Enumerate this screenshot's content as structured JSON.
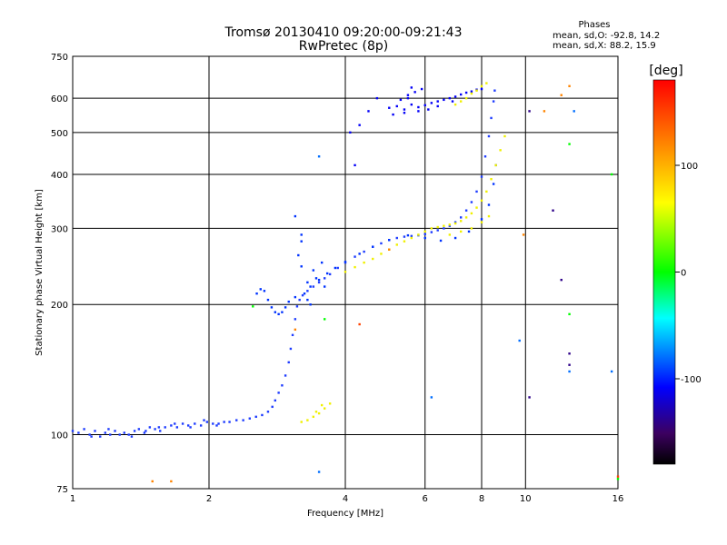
{
  "chart_data": {
    "type": "scatter",
    "title": "Tromsø 20130410 09:20:00-09:21:43",
    "subtitle": "RwPretec (8p)",
    "xlabel": "Frequency [MHz]",
    "ylabel": "Stationary phase Virtual Height [km]",
    "xscale": "log",
    "yscale": "log",
    "xlim": [
      1,
      16
    ],
    "ylim": [
      75,
      750
    ],
    "x_ticks": [
      1,
      2,
      4,
      6,
      8,
      10,
      16
    ],
    "y_ticks": [
      75,
      100,
      200,
      300,
      400,
      500,
      600,
      750
    ],
    "grid": true,
    "phases": {
      "title": "Phases",
      "o_line": "mean, sd,O:  -92.8, 14.2",
      "x_line": "mean, sd,X:   88.2, 15.9"
    },
    "colorbar": {
      "label": "[deg]",
      "ticks": [
        100,
        0,
        -100
      ],
      "range": [
        -180,
        180
      ]
    },
    "o_trace_color": "#1e3cff",
    "x_trace_color": "#f0f000",
    "series": [
      {
        "phase": -100,
        "points": [
          [
            1.0,
            102
          ],
          [
            1.03,
            101
          ],
          [
            1.06,
            103
          ],
          [
            1.09,
            100
          ],
          [
            1.12,
            102
          ],
          [
            1.15,
            99
          ],
          [
            1.18,
            101
          ],
          [
            1.21,
            100
          ],
          [
            1.24,
            102
          ],
          [
            1.27,
            100
          ],
          [
            1.3,
            101
          ],
          [
            1.33,
            100
          ],
          [
            1.37,
            102
          ],
          [
            1.4,
            103
          ],
          [
            1.44,
            101
          ],
          [
            1.48,
            104
          ],
          [
            1.52,
            103
          ],
          [
            1.56,
            102
          ],
          [
            1.6,
            104
          ],
          [
            1.65,
            105
          ],
          [
            1.7,
            104
          ],
          [
            1.75,
            106
          ],
          [
            1.8,
            105
          ],
          [
            1.86,
            106
          ],
          [
            1.92,
            105
          ],
          [
            1.98,
            107
          ],
          [
            2.04,
            106
          ],
          [
            2.1,
            106
          ],
          [
            2.16,
            107
          ],
          [
            2.22,
            107
          ],
          [
            2.3,
            108
          ],
          [
            2.38,
            108
          ],
          [
            2.46,
            109
          ],
          [
            2.54,
            110
          ],
          [
            2.62,
            111
          ],
          [
            2.7,
            113
          ],
          [
            2.76,
            116
          ],
          [
            2.8,
            120
          ],
          [
            2.85,
            125
          ],
          [
            2.9,
            130
          ],
          [
            2.95,
            137
          ],
          [
            3.0,
            147
          ],
          [
            3.03,
            158
          ],
          [
            3.06,
            170
          ],
          [
            3.1,
            185
          ],
          [
            3.13,
            198
          ],
          [
            3.17,
            205
          ],
          [
            3.22,
            210
          ],
          [
            3.3,
            215
          ],
          [
            3.4,
            220
          ],
          [
            3.5,
            225
          ],
          [
            3.6,
            230
          ],
          [
            3.7,
            235
          ],
          [
            3.85,
            243
          ],
          [
            4.0,
            250
          ],
          [
            4.2,
            258
          ],
          [
            4.4,
            265
          ],
          [
            4.6,
            272
          ],
          [
            4.8,
            277
          ],
          [
            5.0,
            282
          ],
          [
            5.2,
            285
          ],
          [
            5.4,
            287
          ],
          [
            5.6,
            288
          ],
          [
            5.8,
            289
          ],
          [
            6.0,
            291
          ],
          [
            6.2,
            294
          ],
          [
            6.4,
            297
          ],
          [
            6.6,
            300
          ],
          [
            6.8,
            304
          ],
          [
            7.0,
            310
          ],
          [
            7.2,
            318
          ],
          [
            7.4,
            330
          ],
          [
            7.6,
            345
          ],
          [
            7.8,
            365
          ],
          [
            8.0,
            395
          ],
          [
            8.15,
            440
          ],
          [
            8.3,
            490
          ],
          [
            8.4,
            540
          ],
          [
            8.5,
            590
          ],
          [
            8.55,
            625
          ],
          [
            1.1,
            99
          ],
          [
            1.2,
            103
          ],
          [
            1.35,
            99
          ],
          [
            1.45,
            102
          ],
          [
            1.55,
            104
          ],
          [
            1.68,
            106
          ],
          [
            1.82,
            104
          ],
          [
            1.95,
            108
          ],
          [
            2.08,
            105
          ]
        ]
      },
      {
        "phase": -95,
        "points": [
          [
            2.55,
            212
          ],
          [
            2.6,
            217
          ],
          [
            2.65,
            215
          ],
          [
            2.7,
            205
          ],
          [
            2.75,
            197
          ],
          [
            2.8,
            192
          ],
          [
            2.85,
            190
          ],
          [
            2.9,
            192
          ],
          [
            2.95,
            197
          ],
          [
            3.0,
            203
          ],
          [
            3.1,
            208
          ],
          [
            3.25,
            212
          ],
          [
            3.35,
            220
          ],
          [
            3.5,
            228
          ],
          [
            3.65,
            236
          ],
          [
            3.8,
            243
          ],
          [
            4.0,
            251
          ],
          [
            4.3,
            262
          ],
          [
            4.6,
            272
          ],
          [
            5.0,
            282
          ],
          [
            5.5,
            289
          ],
          [
            6.0,
            285
          ],
          [
            6.5,
            281
          ],
          [
            7.0,
            285
          ],
          [
            7.5,
            295
          ],
          [
            8.0,
            315
          ],
          [
            8.3,
            340
          ],
          [
            8.5,
            380
          ],
          [
            8.6,
            420
          ],
          [
            3.15,
            260
          ],
          [
            3.2,
            245
          ],
          [
            3.3,
            225
          ],
          [
            3.4,
            240
          ],
          [
            3.45,
            230
          ],
          [
            3.55,
            250
          ],
          [
            3.6,
            220
          ],
          [
            3.3,
            205
          ],
          [
            3.35,
            200
          ],
          [
            3.2,
            290
          ],
          [
            3.1,
            320
          ],
          [
            3.2,
            280
          ]
        ]
      },
      {
        "phase": -110,
        "points": [
          [
            5.0,
            570
          ],
          [
            5.2,
            575
          ],
          [
            5.4,
            565
          ],
          [
            5.6,
            580
          ],
          [
            5.8,
            572
          ],
          [
            6.0,
            578
          ],
          [
            6.2,
            585
          ],
          [
            6.4,
            590
          ],
          [
            6.6,
            595
          ],
          [
            6.8,
            600
          ],
          [
            7.0,
            605
          ],
          [
            7.2,
            612
          ],
          [
            7.4,
            618
          ],
          [
            7.6,
            622
          ],
          [
            7.8,
            628
          ],
          [
            8.0,
            630
          ],
          [
            5.3,
            595
          ],
          [
            5.5,
            610
          ],
          [
            5.7,
            620
          ],
          [
            5.9,
            630
          ],
          [
            4.7,
            600
          ],
          [
            4.5,
            560
          ],
          [
            4.3,
            520
          ],
          [
            4.1,
            500
          ],
          [
            5.1,
            550
          ],
          [
            5.4,
            555
          ],
          [
            5.8,
            560
          ],
          [
            6.1,
            565
          ],
          [
            6.4,
            575
          ],
          [
            6.9,
            590
          ],
          [
            5.5,
            600
          ],
          [
            5.6,
            635
          ],
          [
            4.2,
            420
          ]
        ]
      },
      {
        "phase": 95,
        "points": [
          [
            4.0,
            238
          ],
          [
            4.2,
            244
          ],
          [
            4.4,
            250
          ],
          [
            4.6,
            255
          ],
          [
            4.8,
            262
          ],
          [
            5.0,
            268
          ],
          [
            5.2,
            275
          ],
          [
            5.4,
            280
          ],
          [
            5.6,
            285
          ],
          [
            5.8,
            290
          ],
          [
            6.0,
            295
          ],
          [
            6.2,
            300
          ],
          [
            6.4,
            302
          ],
          [
            6.6,
            304
          ],
          [
            6.8,
            306
          ],
          [
            7.0,
            308
          ],
          [
            7.2,
            312
          ],
          [
            7.4,
            318
          ],
          [
            7.6,
            325
          ],
          [
            7.8,
            335
          ],
          [
            8.0,
            348
          ],
          [
            8.2,
            365
          ],
          [
            8.4,
            390
          ],
          [
            8.6,
            420
          ],
          [
            8.8,
            455
          ],
          [
            9.0,
            490
          ],
          [
            6.8,
            290
          ],
          [
            7.2,
            295
          ],
          [
            7.6,
            300
          ],
          [
            8.0,
            310
          ],
          [
            8.3,
            320
          ],
          [
            3.3,
            108
          ],
          [
            3.4,
            110
          ],
          [
            3.5,
            112
          ],
          [
            3.6,
            115
          ],
          [
            3.7,
            118
          ],
          [
            3.2,
            107
          ],
          [
            3.45,
            113
          ],
          [
            3.55,
            117
          ],
          [
            7.0,
            580
          ],
          [
            7.2,
            590
          ],
          [
            7.4,
            600
          ],
          [
            7.6,
            615
          ],
          [
            7.8,
            625
          ],
          [
            8.0,
            640
          ],
          [
            8.2,
            650
          ]
        ]
      },
      {
        "phase": 0,
        "points": [
          [
            2.5,
            198
          ],
          [
            3.6,
            185
          ],
          [
            12.5,
            190
          ],
          [
            12.5,
            470
          ],
          [
            15.5,
            400
          ],
          [
            16.0,
            79
          ]
        ]
      },
      {
        "phase": -140,
        "points": [
          [
            10.2,
            122
          ],
          [
            11.5,
            330
          ],
          [
            12.0,
            228
          ],
          [
            12.5,
            154
          ],
          [
            12.5,
            145
          ],
          [
            10.2,
            560
          ]
        ]
      },
      {
        "phase": 150,
        "points": [
          [
            4.3,
            180
          ],
          [
            16.0,
            80
          ]
        ]
      },
      {
        "phase": 120,
        "points": [
          [
            1.5,
            78
          ],
          [
            1.65,
            78
          ],
          [
            3.1,
            175
          ],
          [
            5.0,
            268
          ],
          [
            9.9,
            290
          ],
          [
            11.0,
            560
          ],
          [
            12.5,
            640
          ],
          [
            12.0,
            610
          ]
        ]
      },
      {
        "phase": -80,
        "points": [
          [
            6.2,
            122
          ],
          [
            3.5,
            82
          ],
          [
            3.5,
            440
          ],
          [
            12.8,
            560
          ],
          [
            15.5,
            140
          ],
          [
            9.7,
            165
          ],
          [
            12.5,
            140
          ]
        ]
      }
    ]
  }
}
